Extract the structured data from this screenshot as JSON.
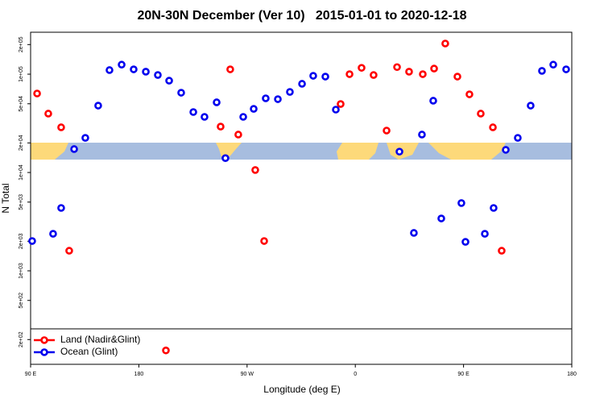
{
  "chart_data": {
    "type": "scatter",
    "title": "20N-30N December (Ver 10)   2015-01-01 to 2020-12-18",
    "x_label": "Longitude (deg E)",
    "y_label": "N Total",
    "log_y": true,
    "legend_position": "bottomleft",
    "xlim": [
      90,
      540
    ],
    "ylim": [
      112,
      267000
    ],
    "xticks": [
      {
        "value": 90,
        "label": "90 E"
      },
      180,
      {
        "value": 270,
        "label": "90 W"
      },
      {
        "value": 360,
        "label": "0"
      },
      {
        "value": 450,
        "label": "90 E"
      },
      {
        "value": 540,
        "label": "180"
      }
    ],
    "yticks": [
      {
        "value": 200,
        "label": "2e+02"
      },
      {
        "value": 500,
        "label": "5e+02"
      },
      {
        "value": 1000,
        "label": "1e+03"
      },
      {
        "value": 2000,
        "label": "2e+03"
      },
      {
        "value": 5000,
        "label": "5e+03"
      },
      {
        "value": 10000,
        "label": "1e+04"
      },
      {
        "value": 20000,
        "label": "2e+04"
      },
      {
        "value": 50000,
        "label": "5e+04"
      },
      {
        "value": 100000,
        "label": "1e+05"
      },
      {
        "value": 200000,
        "label": "2e+05"
      }
    ],
    "series": [
      {
        "name": "Land (Nadir&Glint)",
        "color": "#ff0000",
        "x": [
          95.4,
          104.7,
          115.4,
          122.1,
          202.5,
          248.0,
          256.0,
          262.7,
          276.8,
          284.2,
          347.8,
          355.2,
          365.2,
          375.2,
          386.0,
          394.7,
          404.7,
          416.1,
          425.5,
          434.8,
          444.9,
          454.9,
          464.3,
          474.4,
          481.7
        ],
        "values": [
          63600,
          39700,
          28800,
          1600,
          155,
          29300,
          112000,
          24300,
          10600,
          2010,
          49700,
          100000,
          116000,
          98000,
          26700,
          118000,
          106000,
          100000,
          114000,
          205000,
          94500,
          62400,
          39700,
          28800,
          1600
        ]
      },
      {
        "name": "Ocean (Glint)",
        "color": "#0000ee",
        "x": [
          91.3,
          108.7,
          115.4,
          126.2,
          135.5,
          146.2,
          155.6,
          165.7,
          175.7,
          185.8,
          195.8,
          205.2,
          215.2,
          225.3,
          234.6,
          244.7,
          252.0,
          266.8,
          275.5,
          285.5,
          295.6,
          305.6,
          315.7,
          325.0,
          335.1,
          343.8,
          396.7,
          408.7,
          415.4,
          424.8,
          431.5,
          448.2,
          451.6,
          467.7,
          475.0,
          485.1,
          495.1,
          505.8,
          515.2,
          524.6,
          535.3
        ],
        "values": [
          2010,
          2380,
          4360,
          17300,
          22500,
          47900,
          110000,
          125000,
          112000,
          106000,
          98100,
          85900,
          64800,
          41200,
          36800,
          51700,
          14000,
          36800,
          44400,
          56800,
          55700,
          66000,
          79800,
          96300,
          94500,
          43600,
          16300,
          2430,
          24300,
          53700,
          3410,
          4890,
          1970,
          2380,
          4360,
          17000,
          22500,
          47900,
          108000,
          125000,
          112000
        ]
      }
    ]
  }
}
